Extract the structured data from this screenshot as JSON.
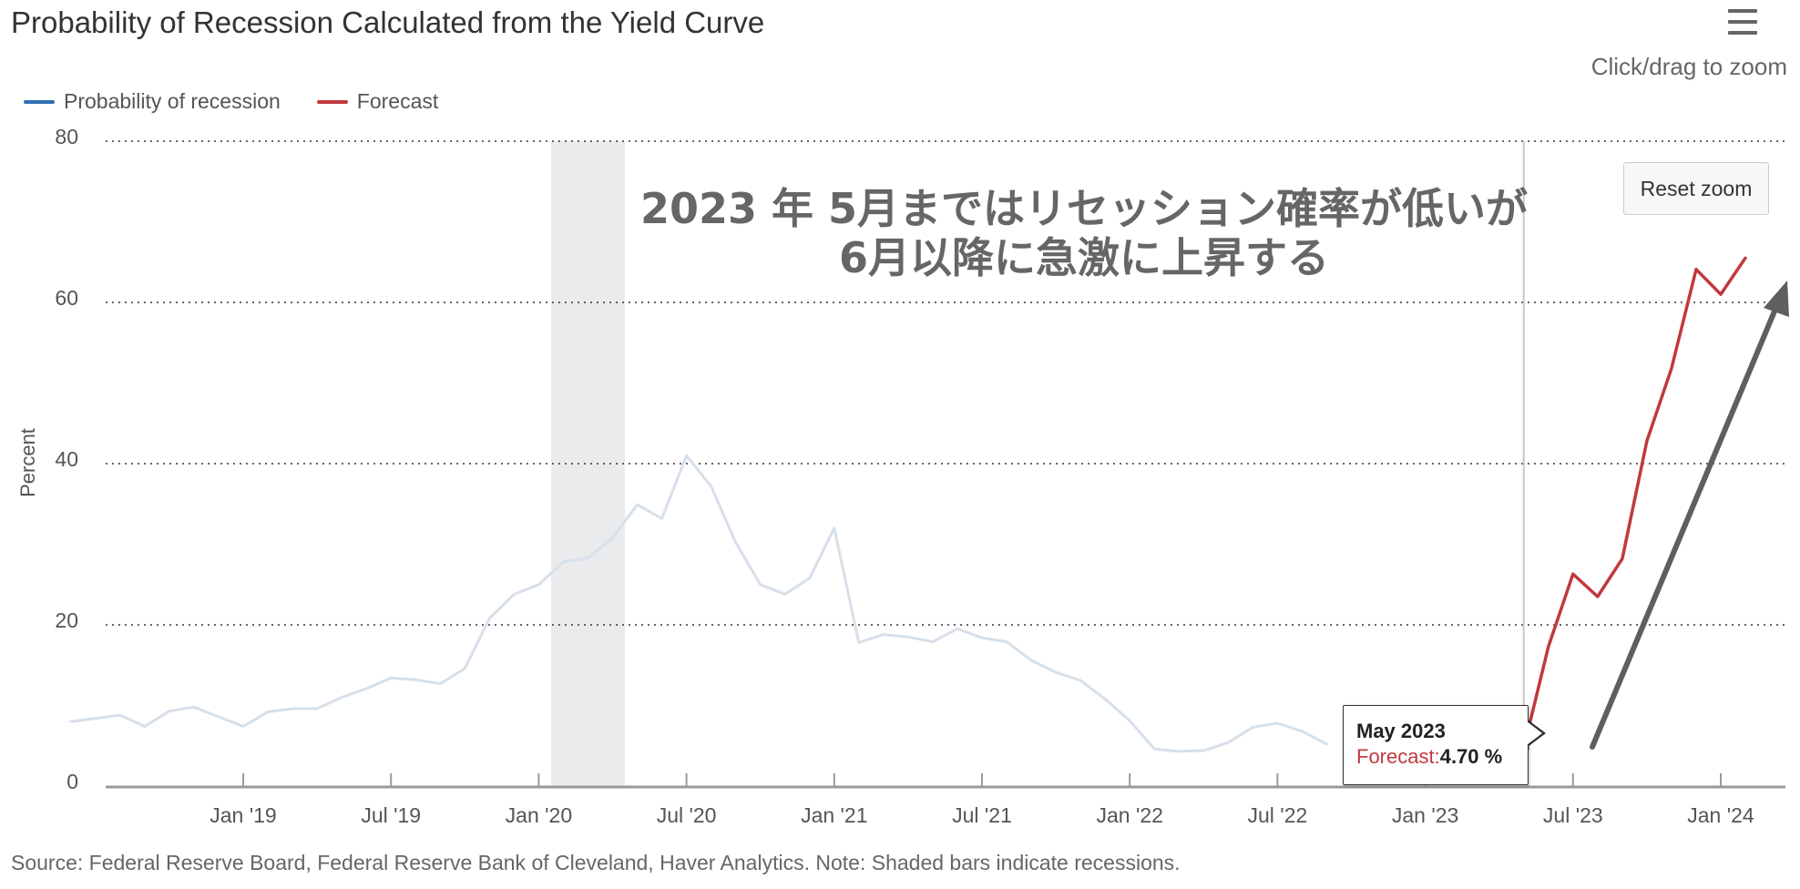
{
  "chart_data": {
    "type": "line",
    "title": "Probability of Recession Calculated from the Yield Curve",
    "ylabel": "Percent",
    "xlabel": "",
    "ylim": [
      0,
      80
    ],
    "yticks": [
      "0",
      "20",
      "40",
      "60",
      "80"
    ],
    "xticks": [
      {
        "label": "Jan '19",
        "date": "2019-01"
      },
      {
        "label": "Jul '19",
        "date": "2019-07"
      },
      {
        "label": "Jan '20",
        "date": "2020-01"
      },
      {
        "label": "Jul '20",
        "date": "2020-07"
      },
      {
        "label": "Jan '21",
        "date": "2021-01"
      },
      {
        "label": "Jul '21",
        "date": "2021-07"
      },
      {
        "label": "Jan '22",
        "date": "2022-01"
      },
      {
        "label": "Jul '22",
        "date": "2022-07"
      },
      {
        "label": "Jan '23",
        "date": "2023-01"
      },
      {
        "label": "Jul '23",
        "date": "2023-07"
      },
      {
        "label": "Jan '24",
        "date": "2024-01"
      }
    ],
    "grid": true,
    "legend_position": "top-left",
    "recession_shading": [
      {
        "start": "2020-02",
        "end": "2020-04"
      }
    ],
    "series": [
      {
        "name": "Probability of recession",
        "color": "#2f6fb3",
        "dimmed_color": "#d6e0ea",
        "data": [
          [
            "2018-06",
            8.0
          ],
          [
            "2018-07",
            8.4
          ],
          [
            "2018-08",
            8.8
          ],
          [
            "2018-09",
            7.4
          ],
          [
            "2018-10",
            9.3
          ],
          [
            "2018-11",
            9.8
          ],
          [
            "2018-12",
            8.6
          ],
          [
            "2019-01",
            7.4
          ],
          [
            "2019-02",
            9.2
          ],
          [
            "2019-03",
            9.6
          ],
          [
            "2019-04",
            9.6
          ],
          [
            "2019-05",
            11.0
          ],
          [
            "2019-06",
            12.1
          ],
          [
            "2019-07",
            13.4
          ],
          [
            "2019-08",
            13.2
          ],
          [
            "2019-09",
            12.7
          ],
          [
            "2019-10",
            14.6
          ],
          [
            "2019-11",
            20.8
          ],
          [
            "2019-12",
            23.8
          ],
          [
            "2020-01",
            25.0
          ],
          [
            "2020-02",
            27.8
          ],
          [
            "2020-03",
            28.3
          ],
          [
            "2020-04",
            30.8
          ],
          [
            "2020-05",
            34.9
          ],
          [
            "2020-06",
            33.2
          ],
          [
            "2020-07",
            41.0
          ],
          [
            "2020-08",
            37.2
          ],
          [
            "2020-09",
            30.2
          ],
          [
            "2020-10",
            25.0
          ],
          [
            "2020-11",
            23.8
          ],
          [
            "2020-12",
            25.8
          ],
          [
            "2021-01",
            32.0
          ],
          [
            "2021-02",
            17.8
          ],
          [
            "2021-03",
            18.8
          ],
          [
            "2021-04",
            18.5
          ],
          [
            "2021-05",
            17.9
          ],
          [
            "2021-06",
            19.5
          ],
          [
            "2021-07",
            18.4
          ],
          [
            "2021-08",
            17.9
          ],
          [
            "2021-09",
            15.6
          ],
          [
            "2021-10",
            14.1
          ],
          [
            "2021-11",
            13.1
          ],
          [
            "2021-12",
            10.8
          ],
          [
            "2022-01",
            8.1
          ],
          [
            "2022-02",
            4.6
          ],
          [
            "2022-03",
            4.3
          ],
          [
            "2022-04",
            4.4
          ],
          [
            "2022-05",
            5.4
          ],
          [
            "2022-06",
            7.3
          ],
          [
            "2022-07",
            7.8
          ],
          [
            "2022-08",
            6.8
          ],
          [
            "2022-09",
            5.2
          ]
        ]
      },
      {
        "name": "Forecast",
        "color": "#c0393d",
        "data": [
          [
            "2023-04",
            2.4
          ],
          [
            "2023-05",
            4.7
          ],
          [
            "2023-06",
            17.3
          ],
          [
            "2023-07",
            26.3
          ],
          [
            "2023-08",
            23.5
          ],
          [
            "2023-09",
            28.2
          ],
          [
            "2023-10",
            42.8
          ],
          [
            "2023-11",
            51.8
          ],
          [
            "2023-12",
            64.1
          ],
          [
            "2024-01",
            61.0
          ],
          [
            "2024-02",
            65.5
          ]
        ]
      }
    ],
    "crosshair_date": "2023-05"
  },
  "ui": {
    "menu_icon": "hamburger-menu-icon",
    "zoom_hint": "Click/drag to zoom",
    "reset_zoom": "Reset zoom",
    "annotation_line1": "2023 年 5月まではリセッション確率が低いが",
    "annotation_line2": "6月以降に急激に上昇する",
    "arrow_color": "#5f5f5f",
    "tooltip": {
      "date": "May 2023",
      "series_label": "Forecast:",
      "value": "4.70 %"
    },
    "source": "Source: Federal Reserve Board, Federal Reserve Bank of Cleveland, Haver Analytics. Note: Shaded bars indicate recessions."
  }
}
